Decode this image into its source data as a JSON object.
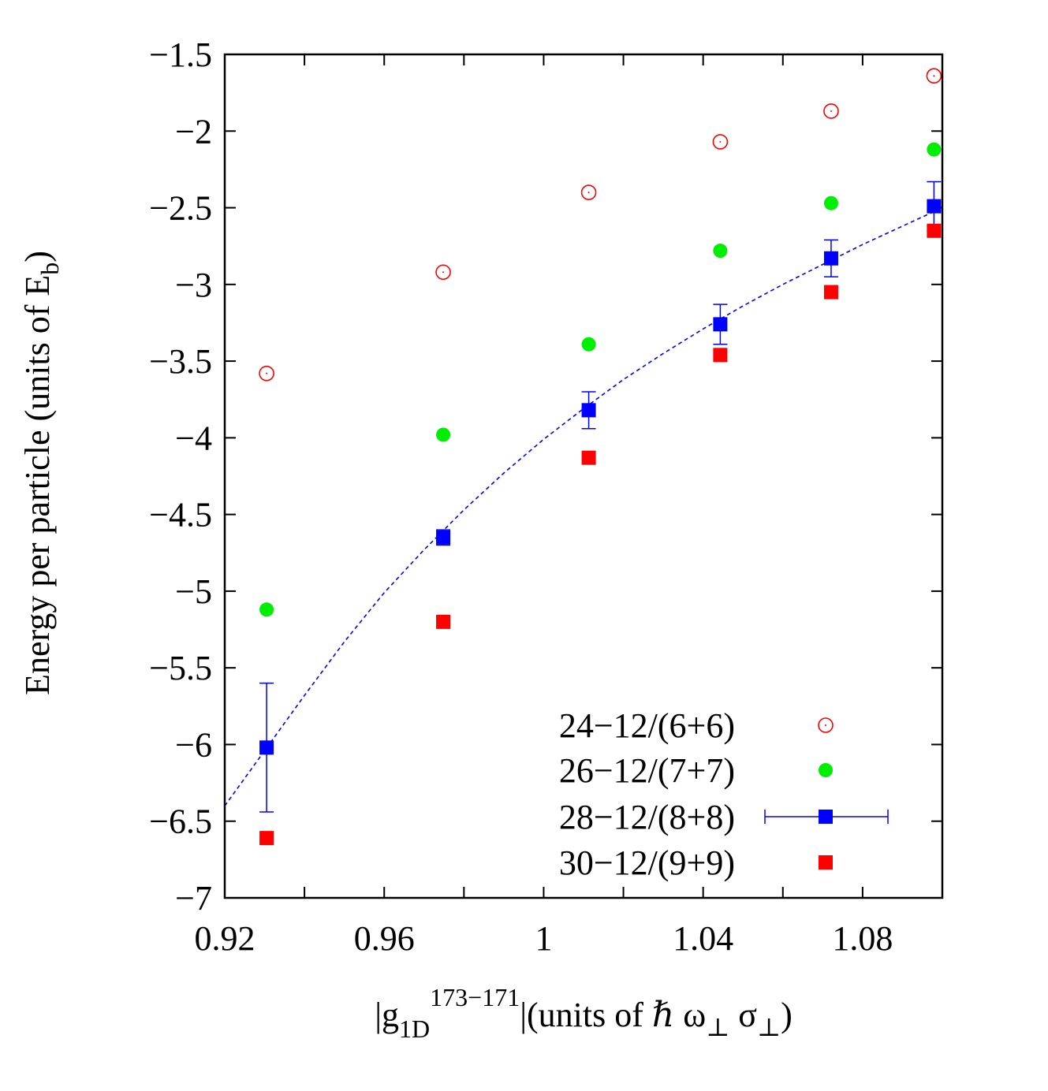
{
  "chart_data": {
    "type": "scatter",
    "xlabel": {
      "prefix": "|g",
      "sub": "1D",
      "sup": "173−171",
      "mid": "|(units of ",
      "hbar": "ℏ",
      "omega": " ω",
      "perp1": "⊥",
      "sigma": " σ",
      "perp2": "⊥",
      "close": ")"
    },
    "ylabel": {
      "main": "Energy per particle (units of E",
      "sub": "b",
      "close": ")"
    },
    "xlim": [
      0.92,
      1.1
    ],
    "ylim": [
      -7,
      -1.5
    ],
    "x_ticks": [
      0.92,
      0.96,
      1,
      1.04,
      1.08
    ],
    "x_tick_labels": [
      "0.92",
      "0.96",
      "1",
      "1.04",
      "1.08"
    ],
    "x_minor_ticks": [
      0.94,
      0.98,
      1.02,
      1.06
    ],
    "y_ticks": [
      -7,
      -6.5,
      -6,
      -5.5,
      -5,
      -4.5,
      -4,
      -3.5,
      -3,
      -2.5,
      -2,
      -1.5
    ],
    "y_tick_labels": [
      "−7",
      "−6.5",
      "−6",
      "−5.5",
      "−5",
      "−4.5",
      "−4",
      "−3.5",
      "−3",
      "−2.5",
      "−2",
      "−1.5"
    ],
    "grid": false,
    "legend_position": "bottom-right",
    "x": [
      0.9305,
      0.9748,
      1.0113,
      1.0443,
      1.0721,
      1.0979
    ],
    "series": [
      {
        "name": "24−12/(6+6)",
        "marker": "open-circle",
        "color": "#ff0000",
        "values": [
          -3.58,
          -2.92,
          -2.4,
          -2.07,
          -1.87,
          -1.64
        ]
      },
      {
        "name": "26−12/(7+7)",
        "marker": "filled-circle",
        "color": "#00ee00",
        "values": [
          -5.12,
          -3.98,
          -3.39,
          -2.78,
          -2.47,
          -2.12
        ]
      },
      {
        "name": "28−12/(8+8)",
        "marker": "filled-square",
        "color": "#0000ff",
        "values": [
          -6.02,
          -4.65,
          -3.82,
          -3.26,
          -2.83,
          -2.49
        ],
        "errors": [
          0.42,
          0.05,
          0.12,
          0.13,
          0.12,
          0.16
        ]
      },
      {
        "name": "30−12/(9+9)",
        "marker": "filled-square",
        "color": "#ff0000",
        "values": [
          -6.61,
          -5.2,
          -4.13,
          -3.46,
          -3.05,
          -2.65
        ]
      }
    ],
    "fit_curve": {
      "style": "dashed",
      "color": "#0000ff",
      "x": [
        0.92,
        0.93,
        0.94,
        0.95,
        0.96,
        0.97,
        0.98,
        0.99,
        1.0,
        1.01,
        1.02,
        1.03,
        1.04,
        1.05,
        1.06,
        1.07,
        1.08,
        1.09,
        1.1
      ],
      "y": [
        -6.4,
        -6.04,
        -5.68,
        -5.33,
        -5.01,
        -4.73,
        -4.47,
        -4.23,
        -4.01,
        -3.81,
        -3.62,
        -3.45,
        -3.29,
        -3.14,
        -3.0,
        -2.87,
        -2.74,
        -2.62,
        -2.5
      ]
    }
  }
}
